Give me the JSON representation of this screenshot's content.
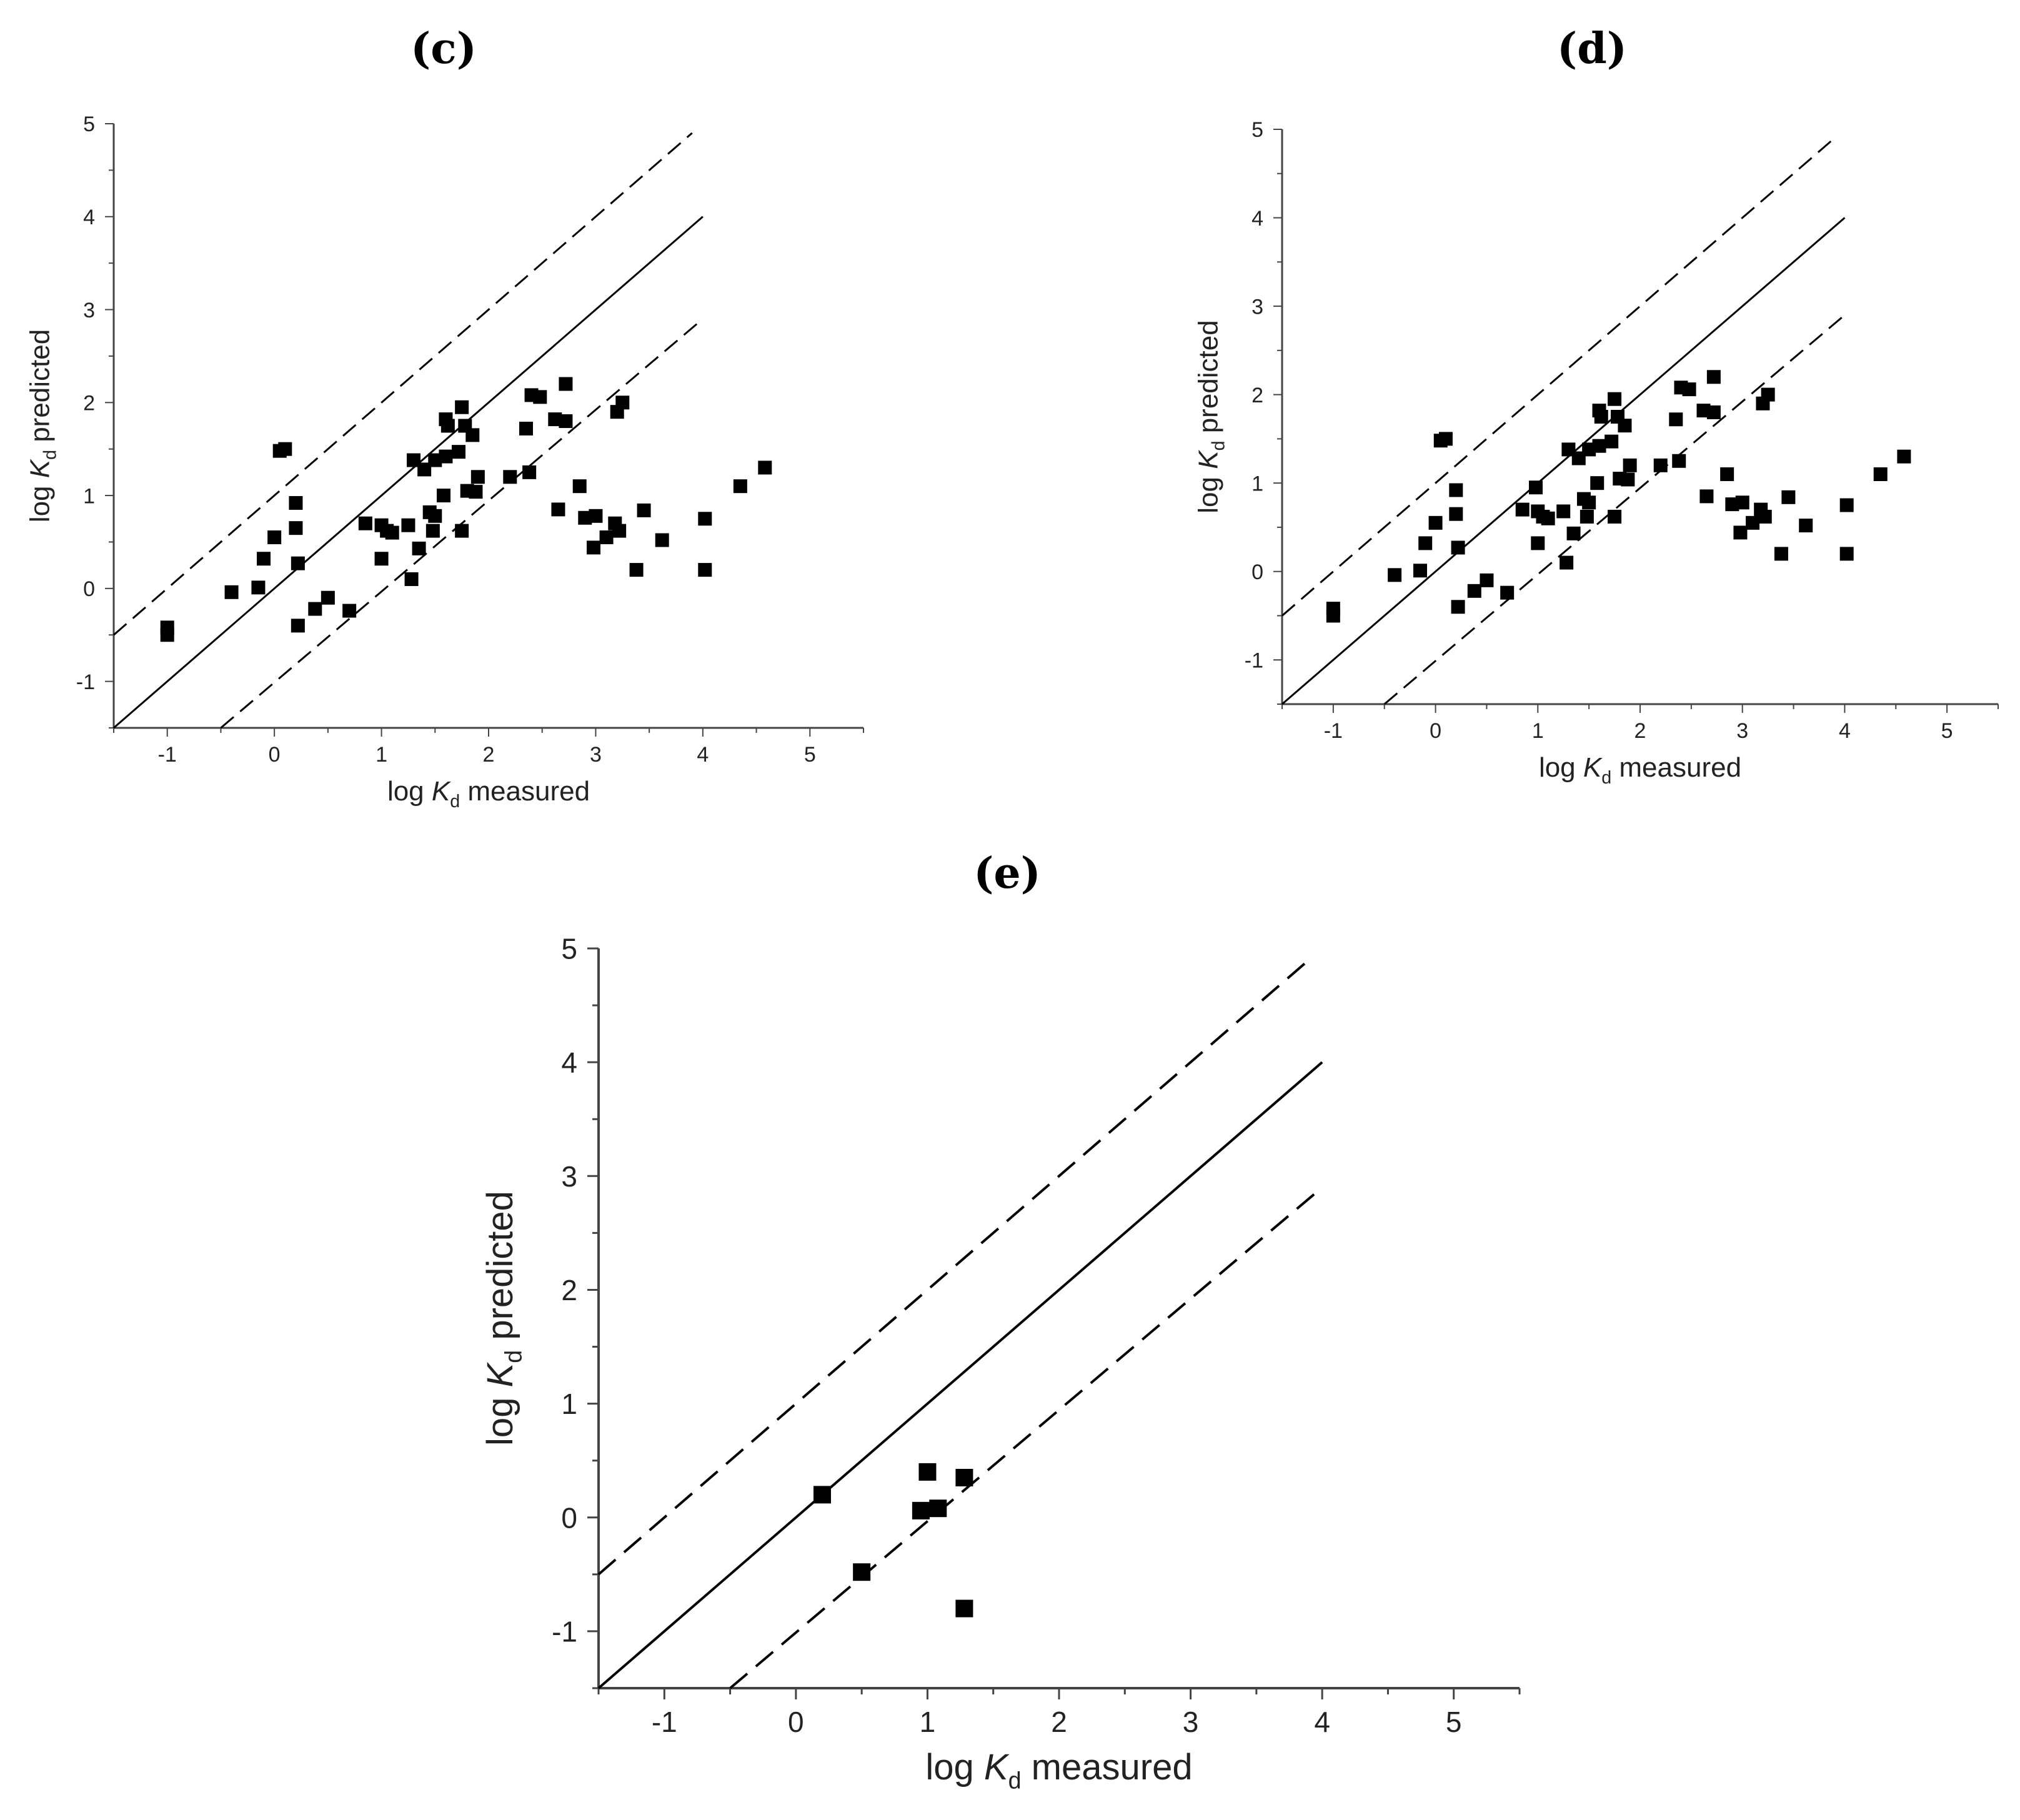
{
  "panels": [
    {
      "id": "c",
      "label": "(c)",
      "xlabel": {
        "prefix": "log ",
        "var": "K",
        "sub": "d",
        "suffix": " measured"
      },
      "ylabel": {
        "prefix": "log ",
        "var": "K",
        "sub": "d",
        "suffix": " predicted"
      },
      "chart_data": {
        "type": "scatter",
        "title": "(c)",
        "xlim": [
          -1.5,
          5.5
        ],
        "ylim": [
          -1.5,
          5
        ],
        "xticks": [
          -1,
          0,
          1,
          2,
          3,
          4,
          5
        ],
        "yticks": [
          -1,
          0,
          1,
          2,
          3,
          4,
          5
        ],
        "lines": [
          {
            "name": "1:1 line",
            "style": "solid",
            "points": [
              [
                -1.5,
                -1.5
              ],
              [
                4,
                4
              ]
            ]
          },
          {
            "name": "+1 log unit",
            "style": "dashed",
            "points": [
              [
                -1.5,
                -0.5
              ],
              [
                3.9,
                4.9
              ]
            ]
          },
          {
            "name": "-1 log unit",
            "style": "dashed",
            "points": [
              [
                -0.5,
                -1.5
              ],
              [
                4,
                2.9
              ]
            ]
          }
        ],
        "points": [
          [
            -1.0,
            -0.42
          ],
          [
            -1.0,
            -0.5
          ],
          [
            0.05,
            1.48
          ],
          [
            0.1,
            1.5
          ],
          [
            -0.4,
            -0.04
          ],
          [
            -0.15,
            0.01
          ],
          [
            -0.1,
            0.32
          ],
          [
            0.0,
            0.55
          ],
          [
            0.2,
            0.92
          ],
          [
            0.2,
            0.65
          ],
          [
            0.22,
            0.27
          ],
          [
            0.22,
            -0.4
          ],
          [
            0.38,
            -0.22
          ],
          [
            0.5,
            -0.1
          ],
          [
            0.7,
            -0.24
          ],
          [
            0.85,
            0.7
          ],
          [
            1.0,
            0.68
          ],
          [
            1.0,
            0.32
          ],
          [
            1.05,
            0.62
          ],
          [
            1.1,
            0.6
          ],
          [
            1.25,
            0.68
          ],
          [
            1.28,
            0.1
          ],
          [
            1.3,
            1.38
          ],
          [
            1.35,
            0.43
          ],
          [
            1.4,
            1.28
          ],
          [
            1.45,
            0.82
          ],
          [
            1.48,
            0.62
          ],
          [
            1.5,
            0.78
          ],
          [
            1.5,
            1.38
          ],
          [
            1.58,
            1.0
          ],
          [
            1.6,
            1.82
          ],
          [
            1.6,
            1.42
          ],
          [
            1.62,
            1.75
          ],
          [
            1.72,
            1.47
          ],
          [
            1.75,
            1.95
          ],
          [
            1.75,
            0.62
          ],
          [
            1.78,
            1.75
          ],
          [
            1.8,
            1.05
          ],
          [
            1.85,
            1.65
          ],
          [
            1.88,
            1.04
          ],
          [
            1.9,
            1.2
          ],
          [
            2.2,
            1.2
          ],
          [
            2.35,
            1.72
          ],
          [
            2.38,
            1.25
          ],
          [
            2.4,
            2.08
          ],
          [
            2.48,
            2.06
          ],
          [
            2.62,
            1.82
          ],
          [
            2.65,
            0.85
          ],
          [
            2.72,
            1.8
          ],
          [
            2.72,
            2.2
          ],
          [
            2.85,
            1.1
          ],
          [
            2.9,
            0.76
          ],
          [
            2.98,
            0.44
          ],
          [
            3.0,
            0.78
          ],
          [
            3.1,
            0.55
          ],
          [
            3.18,
            0.7
          ],
          [
            3.2,
            1.9
          ],
          [
            3.22,
            0.62
          ],
          [
            3.25,
            2.0
          ],
          [
            3.38,
            0.2
          ],
          [
            3.45,
            0.84
          ],
          [
            3.62,
            0.52
          ],
          [
            4.02,
            0.75
          ],
          [
            4.02,
            0.2
          ],
          [
            4.35,
            1.1
          ],
          [
            4.58,
            1.3
          ]
        ]
      }
    },
    {
      "id": "d",
      "label": "(d)",
      "xlabel": {
        "prefix": "log ",
        "var": "K",
        "sub": "d",
        "suffix": " measured"
      },
      "ylabel": {
        "prefix": "log ",
        "var": "K",
        "sub": "d",
        "suffix": " predicted"
      },
      "chart_data": {
        "type": "scatter",
        "title": "(d)",
        "xlim": [
          -1.5,
          5.5
        ],
        "ylim": [
          -1.5,
          5
        ],
        "xticks": [
          -1,
          0,
          1,
          2,
          3,
          4,
          5
        ],
        "yticks": [
          -1,
          0,
          1,
          2,
          3,
          4,
          5
        ],
        "lines": [
          {
            "name": "1:1 line",
            "style": "solid",
            "points": [
              [
                -1.5,
                -1.5
              ],
              [
                4,
                4
              ]
            ]
          },
          {
            "name": "+1 log unit",
            "style": "dashed",
            "points": [
              [
                -1.5,
                -0.5
              ],
              [
                3.9,
                4.9
              ]
            ]
          },
          {
            "name": "-1 log unit",
            "style": "dashed",
            "points": [
              [
                -0.5,
                -1.5
              ],
              [
                4,
                2.9
              ]
            ]
          }
        ],
        "points": [
          [
            -1.0,
            -0.42
          ],
          [
            -1.0,
            -0.5
          ],
          [
            0.05,
            1.48
          ],
          [
            0.1,
            1.5
          ],
          [
            -0.4,
            -0.04
          ],
          [
            -0.15,
            0.01
          ],
          [
            -0.1,
            0.32
          ],
          [
            0.0,
            0.55
          ],
          [
            0.2,
            0.92
          ],
          [
            0.2,
            0.65
          ],
          [
            0.22,
            0.27
          ],
          [
            0.22,
            -0.4
          ],
          [
            0.38,
            -0.22
          ],
          [
            0.5,
            -0.1
          ],
          [
            0.7,
            -0.24
          ],
          [
            0.85,
            0.7
          ],
          [
            0.98,
            0.95
          ],
          [
            1.0,
            0.68
          ],
          [
            1.0,
            0.32
          ],
          [
            1.05,
            0.62
          ],
          [
            1.1,
            0.6
          ],
          [
            1.25,
            0.68
          ],
          [
            1.28,
            0.1
          ],
          [
            1.3,
            1.38
          ],
          [
            1.35,
            0.43
          ],
          [
            1.4,
            1.28
          ],
          [
            1.45,
            0.82
          ],
          [
            1.48,
            0.62
          ],
          [
            1.5,
            0.78
          ],
          [
            1.5,
            1.38
          ],
          [
            1.58,
            1.0
          ],
          [
            1.6,
            1.82
          ],
          [
            1.6,
            1.42
          ],
          [
            1.62,
            1.75
          ],
          [
            1.72,
            1.47
          ],
          [
            1.75,
            1.95
          ],
          [
            1.75,
            0.62
          ],
          [
            1.78,
            1.75
          ],
          [
            1.8,
            1.05
          ],
          [
            1.85,
            1.65
          ],
          [
            1.88,
            1.04
          ],
          [
            1.9,
            1.2
          ],
          [
            2.2,
            1.2
          ],
          [
            2.35,
            1.72
          ],
          [
            2.38,
            1.25
          ],
          [
            2.4,
            2.08
          ],
          [
            2.48,
            2.06
          ],
          [
            2.62,
            1.82
          ],
          [
            2.65,
            0.85
          ],
          [
            2.72,
            1.8
          ],
          [
            2.72,
            2.2
          ],
          [
            2.85,
            1.1
          ],
          [
            2.9,
            0.76
          ],
          [
            2.98,
            0.44
          ],
          [
            3.0,
            0.78
          ],
          [
            3.1,
            0.55
          ],
          [
            3.18,
            0.7
          ],
          [
            3.2,
            1.9
          ],
          [
            3.22,
            0.62
          ],
          [
            3.25,
            2.0
          ],
          [
            3.38,
            0.2
          ],
          [
            3.45,
            0.84
          ],
          [
            3.62,
            0.52
          ],
          [
            4.02,
            0.75
          ],
          [
            4.02,
            0.2
          ],
          [
            4.35,
            1.1
          ],
          [
            4.58,
            1.3
          ]
        ]
      }
    },
    {
      "id": "e",
      "label": "(e)",
      "xlabel": {
        "prefix": "log ",
        "var": "K",
        "sub": "d",
        "suffix": " measured"
      },
      "ylabel": {
        "prefix": "log ",
        "var": "K",
        "sub": "d",
        "suffix": " predicted"
      },
      "chart_data": {
        "type": "scatter",
        "title": "(e)",
        "xlim": [
          -1.5,
          5.5
        ],
        "ylim": [
          -1.5,
          5
        ],
        "xticks": [
          -1,
          0,
          1,
          2,
          3,
          4,
          5
        ],
        "yticks": [
          -1,
          0,
          1,
          2,
          3,
          4,
          5
        ],
        "lines": [
          {
            "name": "1:1 line",
            "style": "solid",
            "points": [
              [
                -1.5,
                -1.5
              ],
              [
                4,
                4
              ]
            ]
          },
          {
            "name": "+1 log unit",
            "style": "dashed",
            "points": [
              [
                -1.5,
                -0.5
              ],
              [
                3.9,
                4.9
              ]
            ]
          },
          {
            "name": "-1 log unit",
            "style": "dashed",
            "points": [
              [
                -0.5,
                -1.5
              ],
              [
                4,
                2.9
              ]
            ]
          }
        ],
        "points": [
          [
            0.2,
            0.2
          ],
          [
            0.5,
            -0.48
          ],
          [
            0.95,
            0.06
          ],
          [
            1.0,
            0.4
          ],
          [
            1.08,
            0.08
          ],
          [
            1.28,
            0.35
          ],
          [
            1.28,
            -0.8
          ]
        ]
      }
    }
  ]
}
